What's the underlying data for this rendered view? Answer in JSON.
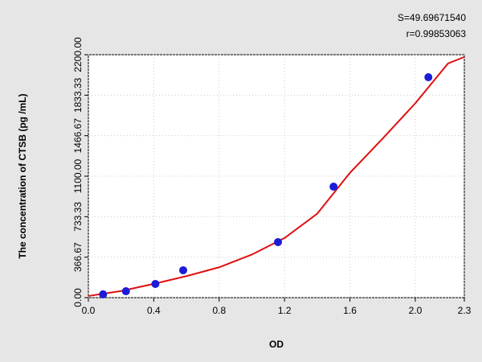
{
  "chart_data": {
    "type": "scatter",
    "annotations": [
      "S=49.69671540",
      "r=0.99853063"
    ],
    "xlabel": "OD",
    "ylabel": "The concentration of CTSB (pg /mL)",
    "xlim": [
      0,
      2.3
    ],
    "xticks": [
      {
        "value": 0,
        "label": "0.0"
      },
      0.4,
      0.8,
      1.2,
      1.6,
      {
        "value": 2,
        "label": "2.0"
      },
      2.3
    ],
    "ylim": [
      0,
      2200
    ],
    "yticks": [
      {
        "value": 0,
        "label": "0.00"
      },
      {
        "value": 366.67,
        "label": "366.67"
      },
      {
        "value": 733.33,
        "label": "733.33"
      },
      {
        "value": 1100,
        "label": "1100.00"
      },
      {
        "value": 1466.67,
        "label": "1466.67"
      },
      {
        "value": 1833.33,
        "label": "1833.33"
      },
      {
        "value": 2200,
        "label": "2200.00"
      }
    ],
    "grid": true,
    "points": {
      "color": "#1c1cd8",
      "x": [
        0.09,
        0.23,
        0.41,
        0.58,
        1.16,
        1.5,
        2.08
      ],
      "values": [
        30,
        58,
        124,
        248,
        503,
        1005,
        1996
      ]
    },
    "curve": {
      "color": "#e01010",
      "x": [
        0,
        0.2,
        0.4,
        0.6,
        0.8,
        1.0,
        1.2,
        1.4,
        1.6,
        1.8,
        2.0,
        2.2,
        2.3
      ],
      "values": [
        15,
        60,
        125,
        195,
        275,
        390,
        540,
        760,
        1130,
        1440,
        1760,
        2120,
        2180
      ]
    }
  }
}
